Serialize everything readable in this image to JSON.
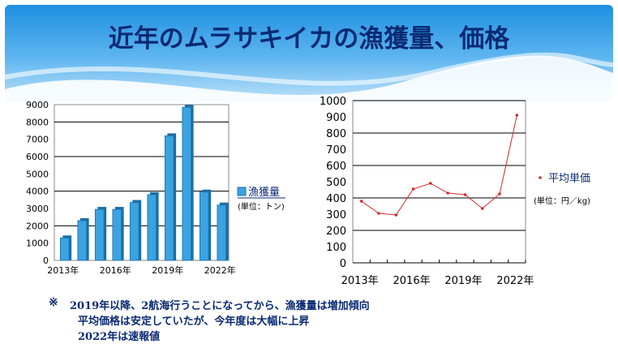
{
  "title": "近年のムラサキイカの漁獲量、価格",
  "colors": {
    "bar": "#3aa3e0",
    "bar_dark": "#1b6fa8",
    "line": "#d42a2a",
    "title": "#0a2a73"
  },
  "chart_data": [
    {
      "type": "bar",
      "categories": [
        "2013年",
        "2014年",
        "2015年",
        "2016年",
        "2017年",
        "2018年",
        "2019年",
        "2020年",
        "2021年",
        "2022年"
      ],
      "tick_labels": [
        "2013年",
        "2016年",
        "2019年",
        "2022年"
      ],
      "values": [
        1300,
        2300,
        2950,
        2950,
        3350,
        3800,
        7200,
        8850,
        3950,
        3200
      ],
      "ylim": [
        0,
        9000
      ],
      "yticks": [
        "0",
        "1000",
        "2000",
        "3000",
        "4000",
        "5000",
        "6000",
        "7000",
        "8000",
        "9000"
      ],
      "legend": {
        "name": "漁獲量",
        "unit": "(単位：トン)"
      },
      "grid": true
    },
    {
      "type": "line",
      "categories": [
        "2013年",
        "2014年",
        "2015年",
        "2016年",
        "2017年",
        "2018年",
        "2019年",
        "2020年",
        "2021年",
        "2022年"
      ],
      "tick_labels": [
        "2013年",
        "2016年",
        "2019年",
        "2022年"
      ],
      "values": [
        380,
        305,
        295,
        455,
        490,
        430,
        420,
        335,
        425,
        910
      ],
      "ylim": [
        0,
        1000
      ],
      "yticks": [
        "0",
        "100",
        "200",
        "300",
        "400",
        "500",
        "600",
        "700",
        "800",
        "900",
        "1000"
      ],
      "legend": {
        "name": "平均単価",
        "unit": "(単位：円／kg)"
      },
      "grid": true
    }
  ],
  "notes": {
    "mark": "※",
    "line1": "2019年以降、2航海行うことになってから、漁獲量は増加傾向",
    "line2": "平均価格は安定していたが、今年度は大幅に上昇",
    "line3": "2022年は速報値"
  }
}
